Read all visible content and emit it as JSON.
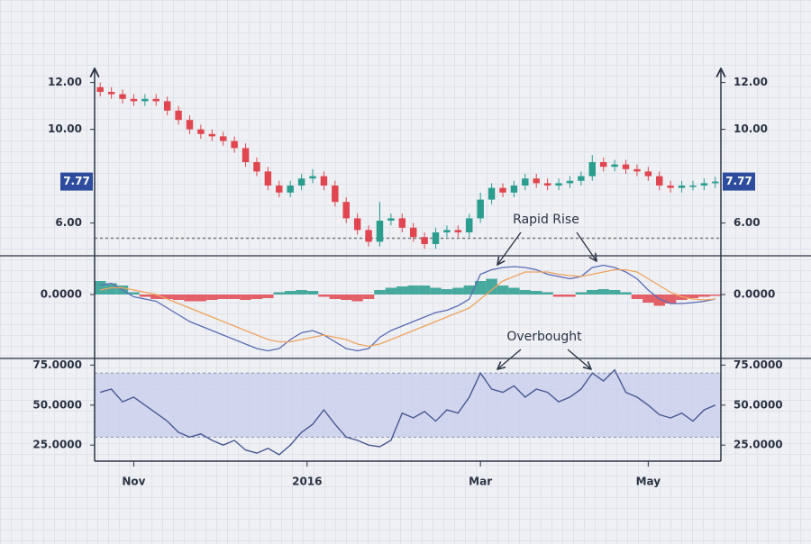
{
  "chart_data": [
    {
      "type": "candlestick",
      "xlim": [
        -0.5,
        55.5
      ],
      "ylim": [
        4.6,
        12.6
      ],
      "yticks": [
        {
          "value": 6,
          "label": "6.00"
        },
        {
          "value": 10,
          "label": "10.00"
        },
        {
          "value": 12,
          "label": "12.00"
        }
      ],
      "up_color": "#2a9d8f",
      "down_color": "#e0464f",
      "support": 5.35,
      "open": [
        11.8,
        11.6,
        11.5,
        11.3,
        11.2,
        11.3,
        11.2,
        10.8,
        10.4,
        10.0,
        9.8,
        9.7,
        9.5,
        9.2,
        8.6,
        8.2,
        7.6,
        7.3,
        7.6,
        7.9,
        8.0,
        7.6,
        6.9,
        6.2,
        5.7,
        5.2,
        6.1,
        6.2,
        5.8,
        5.4,
        5.1,
        5.6,
        5.7,
        5.6,
        6.2,
        7.0,
        7.5,
        7.3,
        7.6,
        7.9,
        7.7,
        7.6,
        7.7,
        7.8,
        8.0,
        8.6,
        8.4,
        8.5,
        8.3,
        8.2,
        8.0,
        7.6,
        7.5,
        7.6,
        7.6,
        7.7
      ],
      "high": [
        12.0,
        11.8,
        11.7,
        11.5,
        11.5,
        11.5,
        11.4,
        11.0,
        10.6,
        10.2,
        10.0,
        9.9,
        9.7,
        9.4,
        8.8,
        8.4,
        7.8,
        7.8,
        8.1,
        8.3,
        8.2,
        7.8,
        7.1,
        6.4,
        5.9,
        6.9,
        6.4,
        6.4,
        6.0,
        5.6,
        5.8,
        5.9,
        5.9,
        6.4,
        7.3,
        7.7,
        7.7,
        7.8,
        8.1,
        8.1,
        7.9,
        7.9,
        8.0,
        8.2,
        8.9,
        8.8,
        8.7,
        8.7,
        8.5,
        8.4,
        8.2,
        7.8,
        7.8,
        7.8,
        7.9,
        7.97
      ],
      "low": [
        11.4,
        11.3,
        11.1,
        11.0,
        11.0,
        11.0,
        10.6,
        10.2,
        9.8,
        9.6,
        9.5,
        9.3,
        9.0,
        8.4,
        8.0,
        7.4,
        7.1,
        7.1,
        7.4,
        7.7,
        7.4,
        6.7,
        6.0,
        5.5,
        5.0,
        5.0,
        5.9,
        5.6,
        5.2,
        4.9,
        4.9,
        5.4,
        5.4,
        5.4,
        6.0,
        6.8,
        7.1,
        7.1,
        7.4,
        7.5,
        7.4,
        7.4,
        7.5,
        7.6,
        7.8,
        8.2,
        8.2,
        8.1,
        8.0,
        7.8,
        7.4,
        7.3,
        7.3,
        7.4,
        7.4,
        7.5
      ],
      "close": [
        11.6,
        11.5,
        11.3,
        11.2,
        11.3,
        11.2,
        10.8,
        10.4,
        10.0,
        9.8,
        9.7,
        9.5,
        9.2,
        8.6,
        8.2,
        7.6,
        7.3,
        7.6,
        7.9,
        8.0,
        7.6,
        6.9,
        6.2,
        5.7,
        5.2,
        6.1,
        6.2,
        5.8,
        5.4,
        5.1,
        5.6,
        5.7,
        5.6,
        6.2,
        7.0,
        7.5,
        7.3,
        7.6,
        7.9,
        7.7,
        7.6,
        7.7,
        7.8,
        8.0,
        8.6,
        8.4,
        8.5,
        8.3,
        8.2,
        8.0,
        7.6,
        7.5,
        7.6,
        7.6,
        7.7,
        7.77
      ]
    },
    {
      "type": "macd",
      "xlim": [
        -0.5,
        55.5
      ],
      "ylim": [
        -1.42,
        0.84
      ],
      "yticks": [
        {
          "value": 0,
          "label": "0.0000"
        }
      ],
      "annotation": "Rapid Rise",
      "series": [
        {
          "color": "#5b6bb5",
          "values": [
            0.2,
            0.25,
            0.1,
            -0.05,
            -0.1,
            -0.15,
            -0.3,
            -0.45,
            -0.6,
            -0.7,
            -0.8,
            -0.9,
            -1.0,
            -1.1,
            -1.2,
            -1.25,
            -1.2,
            -1.0,
            -0.85,
            -0.8,
            -0.9,
            -1.05,
            -1.2,
            -1.25,
            -1.2,
            -0.95,
            -0.8,
            -0.7,
            -0.6,
            -0.5,
            -0.4,
            -0.35,
            -0.25,
            -0.1,
            0.45,
            0.55,
            0.6,
            0.62,
            0.6,
            0.55,
            0.45,
            0.4,
            0.35,
            0.4,
            0.6,
            0.65,
            0.6,
            0.5,
            0.35,
            0.1,
            -0.1,
            -0.2,
            -0.2,
            -0.18,
            -0.15,
            -0.1
          ]
        },
        {
          "color": "#f0a35e",
          "values": [
            0.1,
            0.15,
            0.15,
            0.1,
            0.05,
            0,
            -0.1,
            -0.2,
            -0.3,
            -0.4,
            -0.5,
            -0.6,
            -0.7,
            -0.8,
            -0.9,
            -1.0,
            -1.05,
            -1.05,
            -1.0,
            -0.95,
            -0.9,
            -0.95,
            -1.0,
            -1.1,
            -1.15,
            -1.1,
            -1.0,
            -0.9,
            -0.8,
            -0.7,
            -0.6,
            -0.5,
            -0.4,
            -0.3,
            -0.1,
            0.1,
            0.3,
            0.4,
            0.5,
            0.5,
            0.5,
            0.45,
            0.42,
            0.4,
            0.45,
            0.5,
            0.55,
            0.55,
            0.5,
            0.35,
            0.2,
            0.05,
            -0.05,
            -0.1,
            -0.12,
            -0.1
          ]
        }
      ],
      "histogram": {
        "up_color": "#2a9d8f",
        "down_color": "#e0464f",
        "values": [
          0.3,
          0.25,
          0.2,
          0.05,
          -0.05,
          -0.1,
          -0.1,
          -0.12,
          -0.15,
          -0.15,
          -0.12,
          -0.1,
          -0.1,
          -0.12,
          -0.1,
          -0.08,
          0.05,
          0.08,
          0.1,
          0.08,
          -0.05,
          -0.1,
          -0.12,
          -0.15,
          -0.1,
          0.1,
          0.15,
          0.18,
          0.2,
          0.2,
          0.15,
          0.12,
          0.15,
          0.2,
          0.3,
          0.35,
          0.2,
          0.15,
          0.1,
          0.08,
          0.05,
          -0.05,
          -0.05,
          0.05,
          0.1,
          0.12,
          0.1,
          0.05,
          -0.1,
          -0.18,
          -0.25,
          -0.2,
          -0.12,
          -0.08,
          -0.05,
          -0.03
        ]
      }
    },
    {
      "type": "line",
      "xlim": [
        -0.5,
        55.5
      ],
      "ylim": [
        15,
        78
      ],
      "yticks": [
        {
          "value": 25,
          "label": "25.0000"
        },
        {
          "value": 50,
          "label": "50.0000"
        },
        {
          "value": 75,
          "label": "75.0000"
        }
      ],
      "band": [
        30,
        70
      ],
      "band_color": "#c9d0ec",
      "annotation": "Overbought",
      "xticks": [
        {
          "value": 3,
          "label": "Nov"
        },
        {
          "value": 18.5,
          "label": "2016"
        },
        {
          "value": 34,
          "label": "Mar"
        },
        {
          "value": 49,
          "label": "May"
        }
      ],
      "color": "#4a5894",
      "values": [
        58,
        60,
        52,
        55,
        50,
        45,
        40,
        33,
        30,
        32,
        28,
        25,
        28,
        22,
        20,
        23,
        19,
        25,
        33,
        38,
        47,
        38,
        30,
        28,
        25,
        24,
        28,
        45,
        42,
        46,
        40,
        47,
        45,
        55,
        70,
        60,
        58,
        62,
        55,
        60,
        58,
        52,
        55,
        60,
        70,
        65,
        72,
        58,
        55,
        50,
        44,
        42,
        45,
        40,
        47,
        50
      ]
    }
  ]
}
